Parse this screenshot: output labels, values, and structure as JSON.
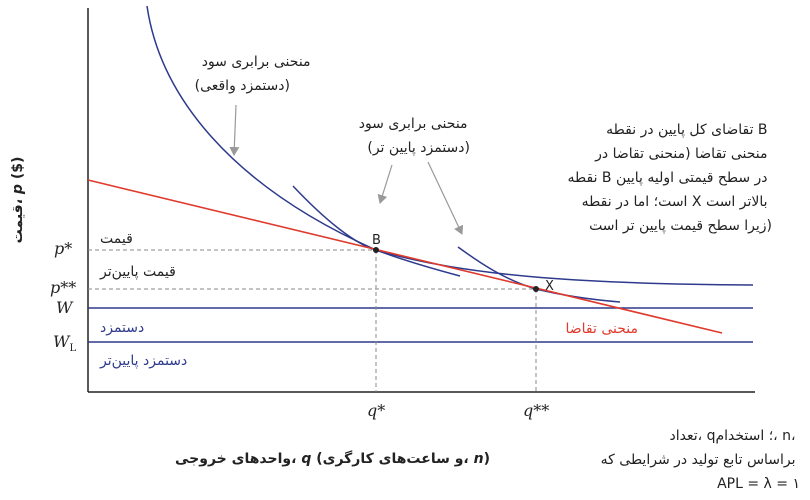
{
  "colors": {
    "axis": "#222222",
    "isoprofit": "#2e3a8c",
    "demand": "#e03a2c",
    "guide": "#888888",
    "arrow": "#999999",
    "text": "#222222"
  },
  "y_axis": {
    "title_part1": "قیمت، ",
    "title_var": "p",
    "title_part2": " ($)",
    "ticks": {
      "p_star": "p*",
      "p_star2": "p**",
      "w": "W",
      "w_low_base": "W",
      "w_low_sub": "L"
    }
  },
  "x_axis": {
    "title_part1": "واحدهای خروجی، ",
    "title_var": "q",
    "title_part2": " (و ساعت‌های کارگری، ",
    "title_var2": "n",
    "title_part3": ")",
    "ticks": {
      "q_star": "q*",
      "q_star2": "q**"
    }
  },
  "line_labels": {
    "price": "قیمت",
    "lower_price": "قیمت پایین‌تر",
    "wage": "دستمزد",
    "lower_wage": "دستمزد پایین‌تر",
    "demand": "منحنی تقاضا"
  },
  "points": {
    "b": "B",
    "x": "X"
  },
  "annotations": {
    "isoprofit_actual": [
      "منحنی برابری سود",
      "(دستمزد واقعی)"
    ],
    "isoprofit_lower": [
      "منحنی برابری سود",
      "(دستمزد پایین تر)"
    ],
    "demand_note": [
      "تقاضای کل پایین در نقطه B",
      "منحنی تقاضا (منحنی تقاضا در",
      "نقطه B در سطح قیمتی اولیه پایین",
      "است؛ اما در نقطه X بالاتر است",
      "زیرا سطح قیمت پایین تر است)"
    ],
    "production_note": [
      "تعداد، q؛ استخدام، n،",
      "براساس تابع تولید در شرایطی که",
      "APL = λ = ۱"
    ]
  }
}
